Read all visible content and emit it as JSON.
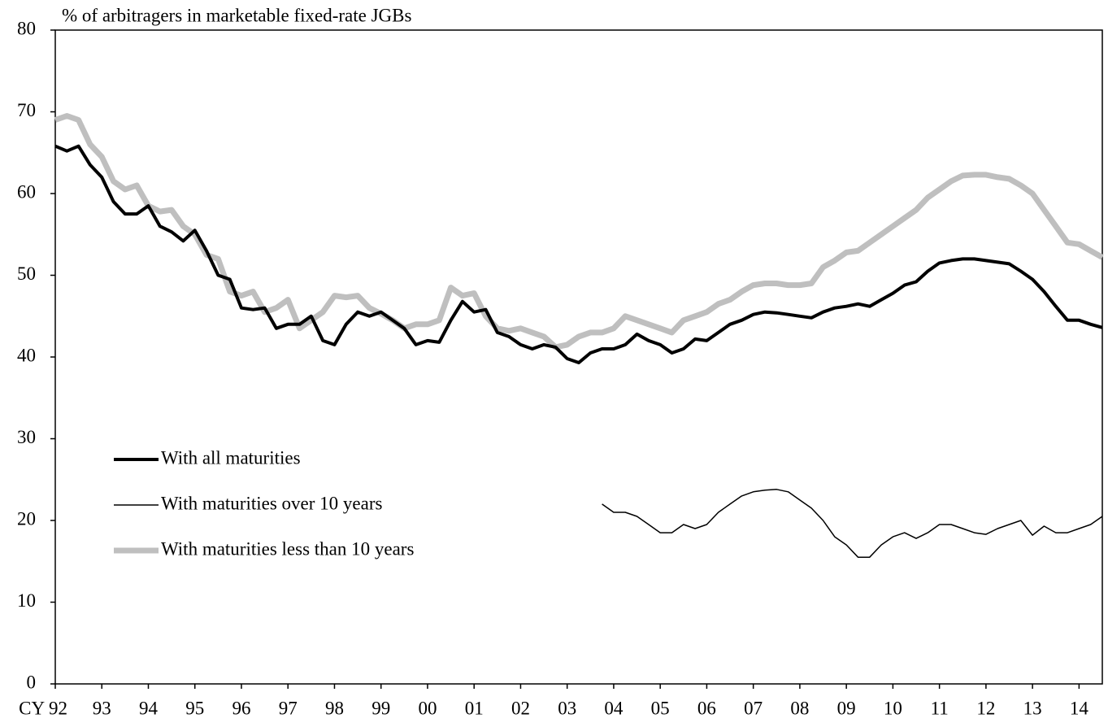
{
  "chart_data": {
    "type": "line",
    "title": "% of arbitragers in marketable fixed-rate JGBs",
    "categories": [
      "CY 92",
      null,
      null,
      null,
      "93",
      null,
      null,
      null,
      "94",
      null,
      null,
      null,
      "95",
      null,
      null,
      null,
      "96",
      null,
      null,
      null,
      "97",
      null,
      null,
      null,
      "98",
      null,
      null,
      null,
      "99",
      null,
      null,
      null,
      "00",
      null,
      null,
      null,
      "01",
      null,
      null,
      null,
      "02",
      null,
      null,
      null,
      "03",
      null,
      null,
      null,
      "04",
      null,
      null,
      null,
      "05",
      null,
      null,
      null,
      "06",
      null,
      null,
      null,
      "07",
      null,
      null,
      null,
      "08",
      null,
      null,
      null,
      "09",
      null,
      null,
      null,
      "10",
      null,
      null,
      null,
      "11",
      null,
      null,
      null,
      "12",
      null,
      null,
      null,
      "13",
      null,
      null,
      null,
      "14",
      null,
      null
    ],
    "ylim": [
      0,
      80
    ],
    "yticks": [
      0,
      10,
      20,
      30,
      40,
      50,
      60,
      70,
      80
    ],
    "series": [
      {
        "name": "With all maturities",
        "color": "#000000",
        "width": 4,
        "values": [
          65.8,
          65.2,
          65.8,
          63.5,
          62,
          59,
          57.5,
          57.5,
          58.5,
          56,
          55.3,
          54.2,
          55.5,
          53,
          50,
          49.5,
          46,
          45.8,
          46,
          43.5,
          44,
          44,
          45,
          42,
          41.5,
          44,
          45.5,
          45,
          45.5,
          44.5,
          43.5,
          41.5,
          42,
          41.8,
          44.5,
          46.8,
          45.5,
          45.8,
          43,
          42.5,
          41.5,
          41,
          41.5,
          41.2,
          39.8,
          39.3,
          40.5,
          41,
          41,
          41.5,
          42.8,
          42,
          41.5,
          40.5,
          41,
          42.2,
          42,
          43,
          44,
          44.5,
          45.2,
          45.5,
          45.4,
          45.2,
          45,
          44.8,
          45.5,
          46,
          46.2,
          46.5,
          46.2,
          47,
          47.8,
          48.8,
          49.2,
          50.5,
          51.5,
          51.8,
          52,
          52,
          51.8,
          51.6,
          51.4,
          50.5,
          49.5,
          48,
          46.2,
          44.5,
          44.5,
          44,
          43.6
        ]
      },
      {
        "name": "With maturities over 10 years",
        "color": "#000000",
        "width": 1.5,
        "values": [
          null,
          null,
          null,
          null,
          null,
          null,
          null,
          null,
          null,
          null,
          null,
          null,
          null,
          null,
          null,
          null,
          null,
          null,
          null,
          null,
          null,
          null,
          null,
          null,
          null,
          null,
          null,
          null,
          null,
          null,
          null,
          null,
          null,
          null,
          null,
          null,
          null,
          null,
          null,
          null,
          null,
          null,
          null,
          null,
          null,
          null,
          null,
          22,
          21,
          21,
          20.5,
          19.5,
          18.5,
          18.5,
          19.5,
          19,
          19.5,
          21,
          22,
          23,
          23.5,
          23.7,
          23.8,
          23.5,
          22.5,
          21.5,
          20,
          18,
          17,
          15.5,
          15.5,
          17,
          18,
          18.5,
          17.8,
          18.5,
          19.5,
          19.5,
          19,
          18.5,
          18.3,
          19,
          19.5,
          20,
          18.2,
          19.3,
          18.5,
          18.5,
          19,
          19.5,
          20.5
        ]
      },
      {
        "name": "With maturities less than 10 years",
        "color": "#bfbfbf",
        "width": 7,
        "values": [
          69,
          69.5,
          69,
          66,
          64.5,
          61.5,
          60.5,
          61,
          58.5,
          57.8,
          58,
          56,
          55,
          52.5,
          52,
          48,
          47.5,
          48,
          45.5,
          46,
          47,
          43.5,
          44.5,
          45.5,
          47.5,
          47.3,
          47.5,
          46,
          45.3,
          44.5,
          43.5,
          44,
          44,
          44.5,
          48.5,
          47.5,
          47.8,
          45,
          43.5,
          43.2,
          43.5,
          43,
          42.5,
          41.2,
          41.5,
          42.5,
          43,
          43,
          43.5,
          45,
          44.5,
          44,
          43.5,
          43,
          44.5,
          45,
          45.5,
          46.5,
          47,
          48,
          48.8,
          49,
          49,
          48.8,
          48.8,
          49,
          51,
          51.8,
          52.8,
          53,
          54,
          55,
          56,
          57,
          58,
          59.5,
          60.5,
          61.5,
          62.2,
          62.3,
          62.3,
          62,
          61.8,
          61,
          60,
          58,
          56,
          54,
          53.8,
          53,
          52.2
        ]
      }
    ]
  }
}
